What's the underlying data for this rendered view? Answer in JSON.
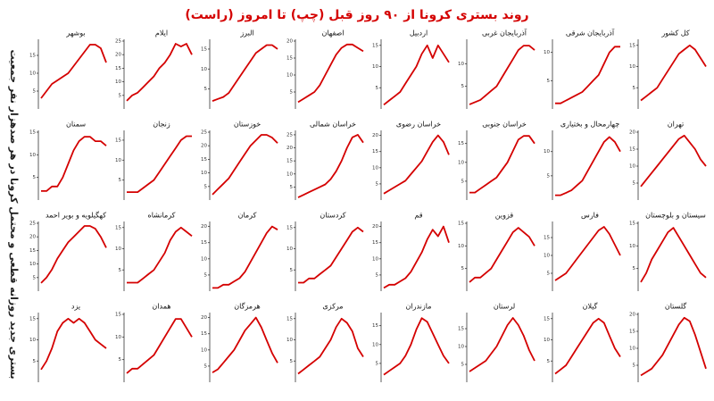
{
  "title": "روند بستری کرونا از ۹۰ روز قبل (چپ) تا امروز (راست)",
  "ylabel": "بستری جدید روزانه قطعی و محتمل کرونا در هر صدهزار نفر جمعیت",
  "chart_data": [
    {
      "type": "line",
      "title": "کل کشور",
      "color": "#d40000",
      "values": [
        2,
        3,
        4,
        5,
        7,
        9,
        11,
        13,
        14,
        15,
        14,
        12,
        10
      ],
      "ylim": [
        0,
        16
      ],
      "yticks": [
        5,
        10,
        15
      ]
    },
    {
      "type": "line",
      "title": "آذربایجان شرقی",
      "color": "#d40000",
      "values": [
        1,
        1,
        1.5,
        2,
        2.5,
        3,
        4,
        5,
        6,
        8,
        10,
        11,
        11
      ],
      "ylim": [
        0,
        12
      ],
      "yticks": [
        5,
        10
      ]
    },
    {
      "type": "line",
      "title": "آذربایجان غربی",
      "color": "#d40000",
      "values": [
        1,
        1.5,
        2,
        3,
        4,
        5,
        7,
        9,
        11,
        13,
        14,
        14,
        13
      ],
      "ylim": [
        0,
        15
      ],
      "yticks": [
        5,
        10
      ]
    },
    {
      "type": "line",
      "title": "اردبیل",
      "color": "#d40000",
      "values": [
        1,
        2,
        3,
        4,
        6,
        8,
        10,
        13,
        15,
        12,
        15,
        13,
        11
      ],
      "ylim": [
        0,
        16
      ],
      "yticks": [
        5,
        10,
        15
      ]
    },
    {
      "type": "line",
      "title": "اصفهان",
      "color": "#d40000",
      "values": [
        2,
        3,
        4,
        5,
        7,
        10,
        13,
        16,
        18,
        19,
        19,
        18,
        17
      ],
      "ylim": [
        0,
        20
      ],
      "yticks": [
        5,
        10,
        15,
        20
      ]
    },
    {
      "type": "line",
      "title": "البرز",
      "color": "#d40000",
      "values": [
        2,
        2.5,
        3,
        4,
        6,
        8,
        10,
        12,
        14,
        15,
        16,
        16,
        15
      ],
      "ylim": [
        0,
        17
      ],
      "yticks": [
        5,
        10,
        15
      ]
    },
    {
      "type": "line",
      "title": "ایلام",
      "color": "#d40000",
      "values": [
        3,
        5,
        6,
        8,
        10,
        12,
        15,
        17,
        20,
        24,
        23,
        24,
        20
      ],
      "ylim": [
        0,
        25
      ],
      "yticks": [
        5,
        10,
        15,
        20,
        25
      ]
    },
    {
      "type": "line",
      "title": "بوشهر",
      "color": "#d40000",
      "values": [
        3,
        5,
        7,
        8,
        9,
        10,
        12,
        14,
        16,
        18,
        18,
        17,
        13
      ],
      "ylim": [
        0,
        19
      ],
      "yticks": [
        5,
        10,
        15
      ]
    },
    {
      "type": "line",
      "title": "تهران",
      "color": "#d40000",
      "values": [
        4,
        6,
        8,
        10,
        12,
        14,
        16,
        18,
        19,
        17,
        15,
        12,
        10
      ],
      "ylim": [
        0,
        20
      ],
      "yticks": [
        5,
        10,
        15,
        20
      ]
    },
    {
      "type": "line",
      "title": "چهارمحال و بختیاری",
      "color": "#d40000",
      "values": [
        1,
        1,
        1.5,
        2,
        3,
        4,
        6,
        8,
        10,
        12,
        13,
        12,
        10
      ],
      "ylim": [
        0,
        14
      ],
      "yticks": [
        5,
        10
      ]
    },
    {
      "type": "line",
      "title": "خراسان جنوبی",
      "color": "#d40000",
      "values": [
        2,
        2,
        3,
        4,
        5,
        6,
        8,
        10,
        13,
        16,
        17,
        17,
        15
      ],
      "ylim": [
        0,
        18
      ],
      "yticks": [
        5,
        10,
        15
      ]
    },
    {
      "type": "line",
      "title": "خراسان رضوی",
      "color": "#d40000",
      "values": [
        2,
        3,
        4,
        5,
        6,
        8,
        10,
        12,
        15,
        18,
        20,
        18,
        14
      ],
      "ylim": [
        0,
        21
      ],
      "yticks": [
        5,
        10,
        15,
        20
      ]
    },
    {
      "type": "line",
      "title": "خراسان شمالی",
      "color": "#d40000",
      "values": [
        1,
        2,
        3,
        4,
        5,
        6,
        8,
        11,
        15,
        20,
        24,
        25,
        22
      ],
      "ylim": [
        0,
        26
      ],
      "yticks": [
        5,
        10,
        15,
        20,
        25
      ]
    },
    {
      "type": "line",
      "title": "خوزستان",
      "color": "#d40000",
      "values": [
        2,
        4,
        6,
        8,
        11,
        14,
        17,
        20,
        22,
        24,
        24,
        23,
        21
      ],
      "ylim": [
        0,
        25
      ],
      "yticks": [
        5,
        10,
        15,
        20,
        25
      ]
    },
    {
      "type": "line",
      "title": "زنجان",
      "color": "#d40000",
      "values": [
        2,
        2,
        2,
        3,
        4,
        5,
        7,
        9,
        11,
        13,
        15,
        16,
        16
      ],
      "ylim": [
        0,
        17
      ],
      "yticks": [
        5,
        10,
        15
      ]
    },
    {
      "type": "line",
      "title": "سمنان",
      "color": "#d40000",
      "values": [
        2,
        2,
        3,
        3,
        5,
        8,
        11,
        13,
        14,
        14,
        13,
        13,
        12
      ],
      "ylim": [
        0,
        15
      ],
      "yticks": [
        5,
        10,
        15
      ]
    },
    {
      "type": "line",
      "title": "سیستان و بلوچستان",
      "color": "#d40000",
      "values": [
        2,
        4,
        7,
        9,
        11,
        13,
        14,
        12,
        10,
        8,
        6,
        4,
        3
      ],
      "ylim": [
        0,
        15
      ],
      "yticks": [
        5,
        10,
        15
      ]
    },
    {
      "type": "line",
      "title": "فارس",
      "color": "#d40000",
      "values": [
        3,
        4,
        5,
        7,
        9,
        11,
        13,
        15,
        17,
        18,
        16,
        13,
        10
      ],
      "ylim": [
        0,
        19
      ],
      "yticks": [
        5,
        10,
        15
      ]
    },
    {
      "type": "line",
      "title": "قزوین",
      "color": "#d40000",
      "values": [
        2,
        3,
        3,
        4,
        5,
        7,
        9,
        11,
        13,
        14,
        13,
        12,
        10
      ],
      "ylim": [
        0,
        15
      ],
      "yticks": [
        5,
        10,
        15
      ]
    },
    {
      "type": "line",
      "title": "قم",
      "color": "#d40000",
      "values": [
        1,
        2,
        2,
        3,
        4,
        6,
        9,
        12,
        16,
        19,
        17,
        20,
        15
      ],
      "ylim": [
        0,
        21
      ],
      "yticks": [
        5,
        10,
        15,
        20
      ]
    },
    {
      "type": "line",
      "title": "کردستان",
      "color": "#d40000",
      "values": [
        2,
        2,
        3,
        3,
        4,
        5,
        6,
        8,
        10,
        12,
        14,
        15,
        14
      ],
      "ylim": [
        0,
        16
      ],
      "yticks": [
        5,
        10,
        15
      ]
    },
    {
      "type": "line",
      "title": "کرمان",
      "color": "#d40000",
      "values": [
        1,
        1,
        2,
        2,
        3,
        4,
        6,
        9,
        12,
        15,
        18,
        20,
        19
      ],
      "ylim": [
        0,
        21
      ],
      "yticks": [
        5,
        10,
        15,
        20
      ]
    },
    {
      "type": "line",
      "title": "کرمانشاه",
      "color": "#d40000",
      "values": [
        2,
        2,
        2,
        3,
        4,
        5,
        7,
        9,
        12,
        14,
        15,
        14,
        13
      ],
      "ylim": [
        0,
        16
      ],
      "yticks": [
        5,
        10,
        15
      ]
    },
    {
      "type": "line",
      "title": "کهگیلویه و بویر احمد",
      "color": "#d40000",
      "values": [
        3,
        5,
        8,
        12,
        15,
        18,
        20,
        22,
        24,
        24,
        23,
        20,
        16
      ],
      "ylim": [
        0,
        25
      ],
      "yticks": [
        5,
        10,
        15,
        20,
        25
      ]
    },
    {
      "type": "line",
      "title": "گلستان",
      "color": "#d40000",
      "values": [
        2,
        3,
        4,
        6,
        8,
        11,
        14,
        17,
        19,
        18,
        14,
        9,
        4
      ],
      "ylim": [
        0,
        20
      ],
      "yticks": [
        5,
        10,
        15,
        20
      ]
    },
    {
      "type": "line",
      "title": "گیلان",
      "color": "#d40000",
      "values": [
        2,
        3,
        4,
        6,
        8,
        10,
        12,
        14,
        15,
        14,
        11,
        8,
        6
      ],
      "ylim": [
        0,
        16
      ],
      "yticks": [
        5,
        10,
        15
      ]
    },
    {
      "type": "line",
      "title": "لرستان",
      "color": "#d40000",
      "values": [
        3,
        4,
        5,
        6,
        8,
        10,
        13,
        16,
        18,
        16,
        13,
        9,
        6
      ],
      "ylim": [
        0,
        19
      ],
      "yticks": [
        5,
        10,
        15
      ]
    },
    {
      "type": "line",
      "title": "مازندران",
      "color": "#d40000",
      "values": [
        2,
        3,
        4,
        5,
        7,
        10,
        14,
        17,
        16,
        13,
        10,
        7,
        5
      ],
      "ylim": [
        0,
        18
      ],
      "yticks": [
        5,
        10,
        15
      ]
    },
    {
      "type": "line",
      "title": "مرکزی",
      "color": "#d40000",
      "values": [
        2,
        3,
        4,
        5,
        6,
        8,
        10,
        13,
        15,
        14,
        12,
        8,
        6
      ],
      "ylim": [
        0,
        16
      ],
      "yticks": [
        5,
        10,
        15
      ]
    },
    {
      "type": "line",
      "title": "هرمزگان",
      "color": "#d40000",
      "values": [
        3,
        4,
        6,
        8,
        10,
        13,
        16,
        18,
        20,
        17,
        13,
        9,
        6
      ],
      "ylim": [
        0,
        21
      ],
      "yticks": [
        5,
        10,
        15,
        20
      ]
    },
    {
      "type": "line",
      "title": "همدان",
      "color": "#d40000",
      "values": [
        2,
        3,
        3,
        4,
        5,
        6,
        8,
        10,
        12,
        14,
        14,
        12,
        10
      ],
      "ylim": [
        0,
        15
      ],
      "yticks": [
        5,
        10,
        15
      ]
    },
    {
      "type": "line",
      "title": "یزد",
      "color": "#d40000",
      "values": [
        3,
        5,
        8,
        12,
        14,
        15,
        14,
        15,
        14,
        12,
        10,
        9,
        8
      ],
      "ylim": [
        0,
        16
      ],
      "yticks": [
        5,
        10,
        15
      ]
    }
  ]
}
